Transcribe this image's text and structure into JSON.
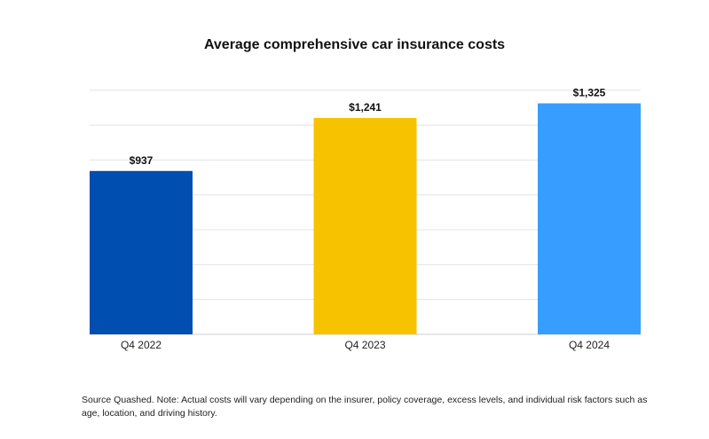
{
  "chart_data": {
    "type": "bar",
    "title": "Average comprehensive car insurance costs",
    "categories": [
      "Q4 2022",
      "Q4 2023",
      "Q4 2024"
    ],
    "values": [
      937,
      1241,
      1325
    ],
    "data_labels": [
      "$937",
      "$1,241",
      "$1,325"
    ],
    "colors": [
      "#004EAF",
      "#F7C200",
      "#379EFF"
    ],
    "xlabel": "",
    "ylabel": "",
    "ylim": [
      0,
      1400
    ],
    "grid": true
  },
  "footnote": "Source Quashed. Note: Actual costs will vary depending on the insurer, policy coverage, excess levels, and individual risk factors such as age, location, and driving history."
}
